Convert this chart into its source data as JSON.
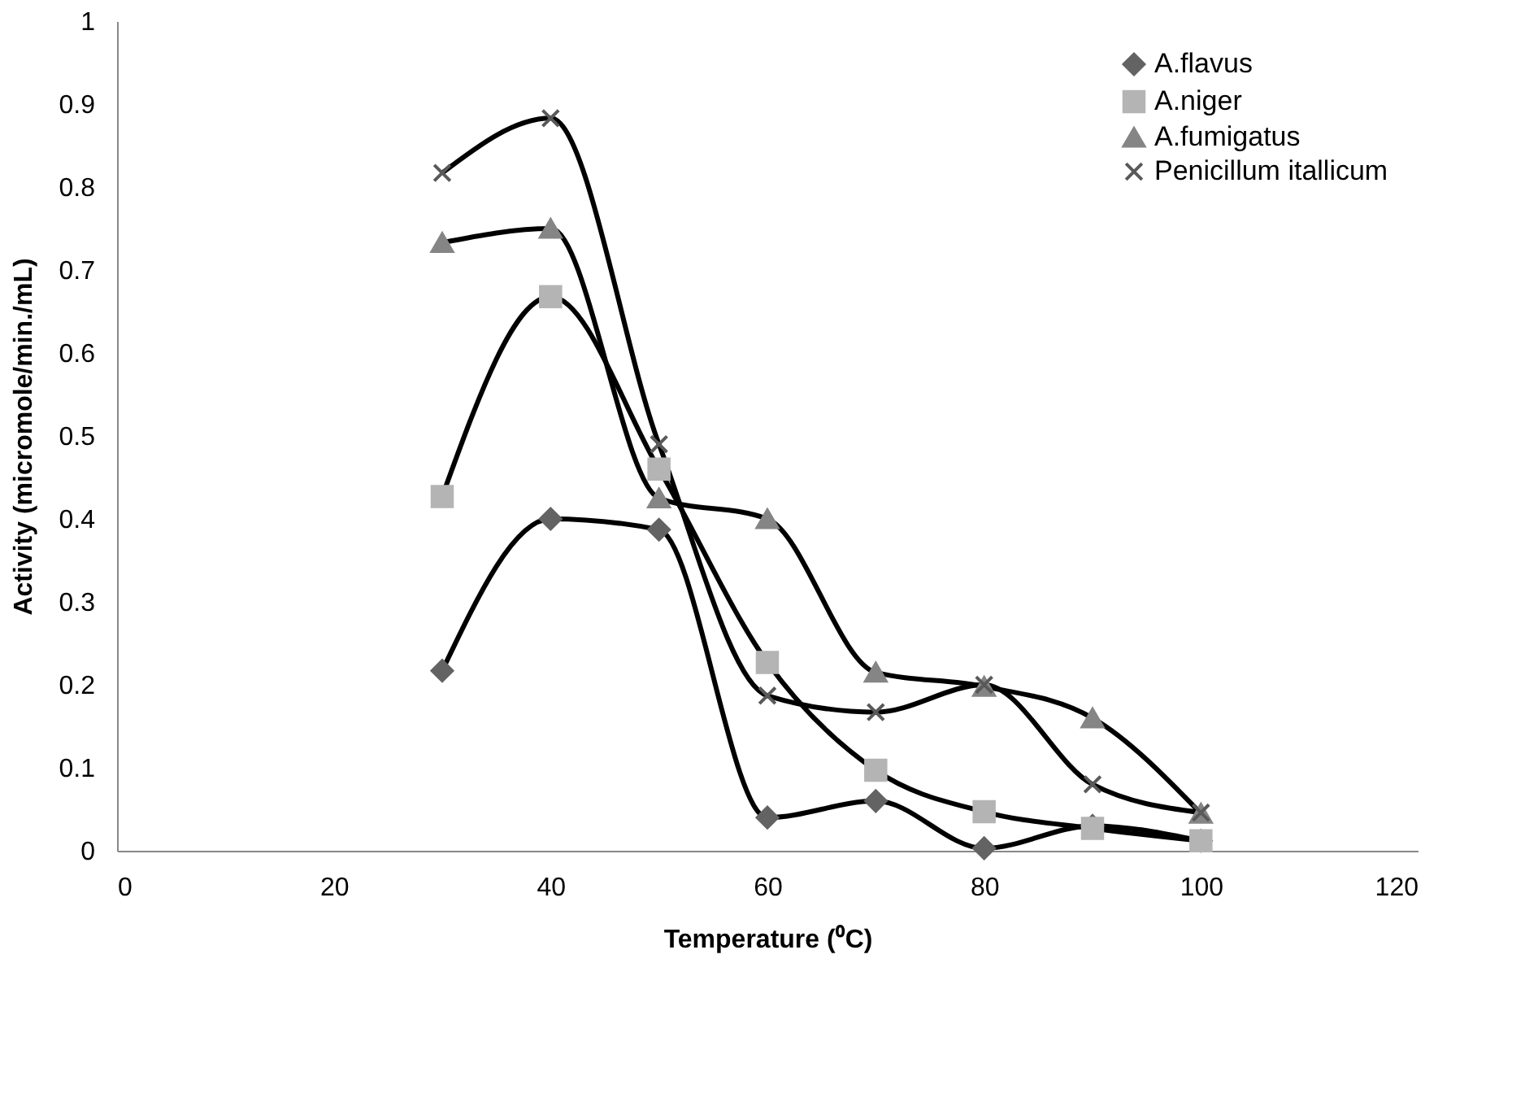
{
  "chart_data": {
    "type": "line",
    "xlabel": "Temperature (⁰C)",
    "ylabel": "Activity (micromole/min./mL)",
    "x": [
      30,
      40,
      50,
      60,
      70,
      80,
      90,
      100
    ],
    "series": [
      {
        "name": "A.flavus",
        "color": "#636363",
        "marker": "diamond",
        "values": [
          0.217,
          0.4,
          0.387,
          0.04,
          0.06,
          0.003,
          0.03,
          0.012
        ]
      },
      {
        "name": "A.niger",
        "color": "#b4b4b4",
        "marker": "square",
        "values": [
          0.427,
          0.668,
          0.46,
          0.227,
          0.097,
          0.047,
          0.027,
          0.012
        ]
      },
      {
        "name": "A.fumigatus",
        "color": "#858585",
        "marker": "triangle",
        "values": [
          0.733,
          0.75,
          0.425,
          0.4,
          0.215,
          0.198,
          0.16,
          0.045
        ]
      },
      {
        "name": "Penicillum itallicum",
        "color": "#595959",
        "marker": "cross",
        "values": [
          0.817,
          0.883,
          0.49,
          0.187,
          0.167,
          0.2,
          0.08,
          0.046
        ]
      }
    ],
    "xlim": [
      0,
      120
    ],
    "xticks": [
      0,
      20,
      40,
      60,
      80,
      100,
      120
    ],
    "ylim": [
      0,
      1
    ],
    "yticks": [
      0,
      0.1,
      0.2,
      0.3,
      0.4,
      0.5,
      0.6,
      0.7,
      0.8,
      0.9,
      1
    ],
    "grid": false,
    "legend": "top right",
    "line_style": "solid"
  }
}
